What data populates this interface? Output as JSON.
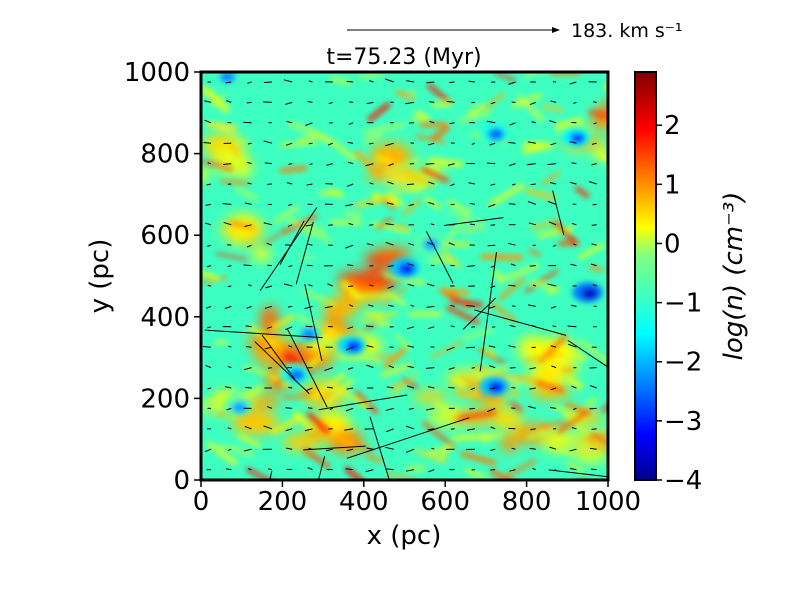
{
  "chart_data": {
    "type": "heatmap",
    "title": "t=75.23 (Myr)",
    "xlabel": "x (pc)",
    "ylabel": "y (pc)",
    "xlim": [
      0,
      1000
    ],
    "ylim": [
      0,
      1000
    ],
    "x_ticks": [
      "0",
      "200",
      "400",
      "600",
      "800",
      "1000"
    ],
    "y_ticks": [
      "0",
      "200",
      "400",
      "600",
      "800",
      "1000"
    ],
    "colorbar": {
      "label": "log(n) (cm⁻³)",
      "colormap": "jet",
      "range": [
        -4,
        2.9
      ],
      "ticks": [
        "2",
        "1",
        "0",
        "−1",
        "−2",
        "−3",
        "−4"
      ]
    },
    "velocity_key": {
      "label": "183. km s⁻¹",
      "value_km_s": 183
    },
    "background_value": -1.0,
    "dense_regions": [
      {
        "x": 50,
        "y": 800,
        "value": 1.2
      },
      {
        "x": 120,
        "y": 600,
        "value": 1.0
      },
      {
        "x": 180,
        "y": 350,
        "value": 1.6
      },
      {
        "x": 250,
        "y": 260,
        "value": 1.8
      },
      {
        "x": 90,
        "y": 200,
        "value": 1.2
      },
      {
        "x": 420,
        "y": 520,
        "value": 1.9
      },
      {
        "x": 350,
        "y": 380,
        "value": 1.5
      },
      {
        "x": 520,
        "y": 760,
        "value": 1.0
      },
      {
        "x": 760,
        "y": 150,
        "value": 1.4
      },
      {
        "x": 830,
        "y": 270,
        "value": 1.1
      },
      {
        "x": 960,
        "y": 850,
        "value": 1.2
      },
      {
        "x": 930,
        "y": 120,
        "value": 0.9
      },
      {
        "x": 620,
        "y": 200,
        "value": 1.0
      },
      {
        "x": 300,
        "y": 120,
        "value": 1.3
      }
    ],
    "voids": [
      {
        "x": 500,
        "y": 520,
        "value": -3.0
      },
      {
        "x": 950,
        "y": 460,
        "value": -3.5
      },
      {
        "x": 720,
        "y": 230,
        "value": -3.0
      },
      {
        "x": 370,
        "y": 330,
        "value": -2.8
      },
      {
        "x": 920,
        "y": 840,
        "value": -2.6
      },
      {
        "x": 230,
        "y": 260,
        "value": -2.4
      },
      {
        "x": 260,
        "y": 360,
        "value": -2.2
      },
      {
        "x": 560,
        "y": 580,
        "value": -2.0
      },
      {
        "x": 60,
        "y": 990,
        "value": -2.2
      },
      {
        "x": 90,
        "y": 180,
        "value": -2.0
      },
      {
        "x": 720,
        "y": 850,
        "value": -2.4
      }
    ]
  }
}
